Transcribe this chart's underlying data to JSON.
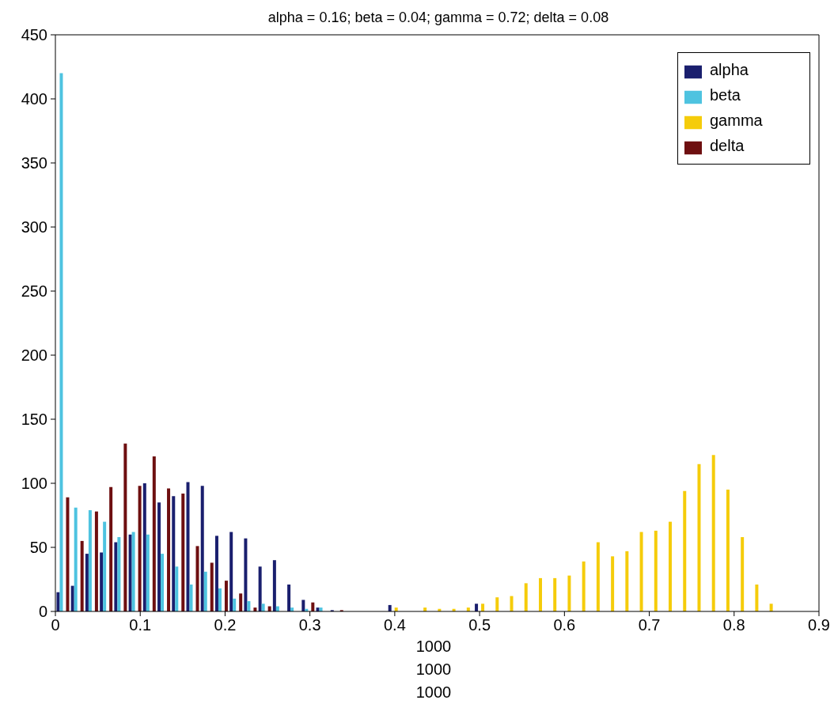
{
  "chart_data": {
    "type": "histogram",
    "title": "alpha = 0.16; beta = 0.04; gamma = 0.72; delta = 0.08",
    "bins": [
      0,
      0.017,
      0.034,
      0.051,
      0.068,
      0.085,
      0.102,
      0.119,
      0.136,
      0.153,
      0.17,
      0.187,
      0.204,
      0.221,
      0.238,
      0.255,
      0.272,
      0.289,
      0.306,
      0.323,
      0.34,
      0.357,
      0.374,
      0.391,
      0.408,
      0.425,
      0.442,
      0.459,
      0.476,
      0.493,
      0.51,
      0.527,
      0.544,
      0.561,
      0.578,
      0.595,
      0.612,
      0.629,
      0.646,
      0.663,
      0.68,
      0.697,
      0.714,
      0.731,
      0.748,
      0.765,
      0.782,
      0.799,
      0.816,
      0.833,
      0.85
    ],
    "series": [
      {
        "name": "alpha",
        "color": "#1a1f6e",
        "values": [
          15,
          20,
          45,
          46,
          54,
          60,
          100,
          85,
          90,
          101,
          98,
          59,
          62,
          57,
          35,
          40,
          21,
          9,
          3,
          1,
          0,
          0,
          0,
          5,
          0,
          0,
          0,
          0,
          0,
          6,
          0,
          0,
          0,
          0,
          0,
          0,
          0,
          0,
          0,
          0,
          0,
          0,
          0,
          0,
          0,
          0,
          0,
          0,
          0,
          0
        ]
      },
      {
        "name": "beta",
        "color": "#4ec3e0",
        "values": [
          420,
          81,
          79,
          70,
          58,
          62,
          60,
          45,
          35,
          21,
          31,
          18,
          10,
          8,
          6,
          4,
          3,
          2,
          3,
          0,
          0,
          0,
          0,
          0,
          0,
          0,
          0,
          0,
          0,
          0,
          0,
          0,
          0,
          0,
          0,
          0,
          0,
          0,
          0,
          0,
          0,
          0,
          0,
          0,
          0,
          0,
          0,
          0,
          0,
          0
        ]
      },
      {
        "name": "gamma",
        "color": "#f5cc0a",
        "values": [
          0,
          0,
          0,
          0,
          0,
          0,
          0,
          0,
          0,
          0,
          0,
          0,
          0,
          0,
          0,
          0,
          0,
          0,
          0,
          0,
          0,
          0,
          0,
          3,
          0,
          3,
          2,
          2,
          3,
          6,
          11,
          12,
          22,
          26,
          26,
          28,
          39,
          54,
          43,
          47,
          62,
          63,
          70,
          94,
          115,
          122,
          95,
          58,
          21,
          6
        ]
      },
      {
        "name": "delta",
        "color": "#6e0f10",
        "values": [
          89,
          55,
          78,
          97,
          131,
          98,
          121,
          96,
          92,
          51,
          38,
          24,
          14,
          3,
          4,
          0,
          0,
          7,
          0,
          1,
          0,
          0,
          0,
          0,
          0,
          0,
          0,
          0,
          0,
          0,
          0,
          0,
          0,
          0,
          0,
          0,
          0,
          0,
          0,
          0,
          0,
          0,
          0,
          0,
          0,
          0,
          0,
          0,
          0,
          0
        ]
      }
    ],
    "xlim": [
      0,
      0.9
    ],
    "xticks": [
      0,
      0.1,
      0.2,
      0.3,
      0.4,
      0.5,
      0.6,
      0.7,
      0.8,
      0.9
    ],
    "ylim": [
      0,
      450
    ],
    "yticks": [
      0,
      50,
      100,
      150,
      200,
      250,
      300,
      350,
      400,
      450
    ],
    "legend": "top right",
    "annotations": [
      "1000",
      "1000",
      "1000"
    ]
  }
}
